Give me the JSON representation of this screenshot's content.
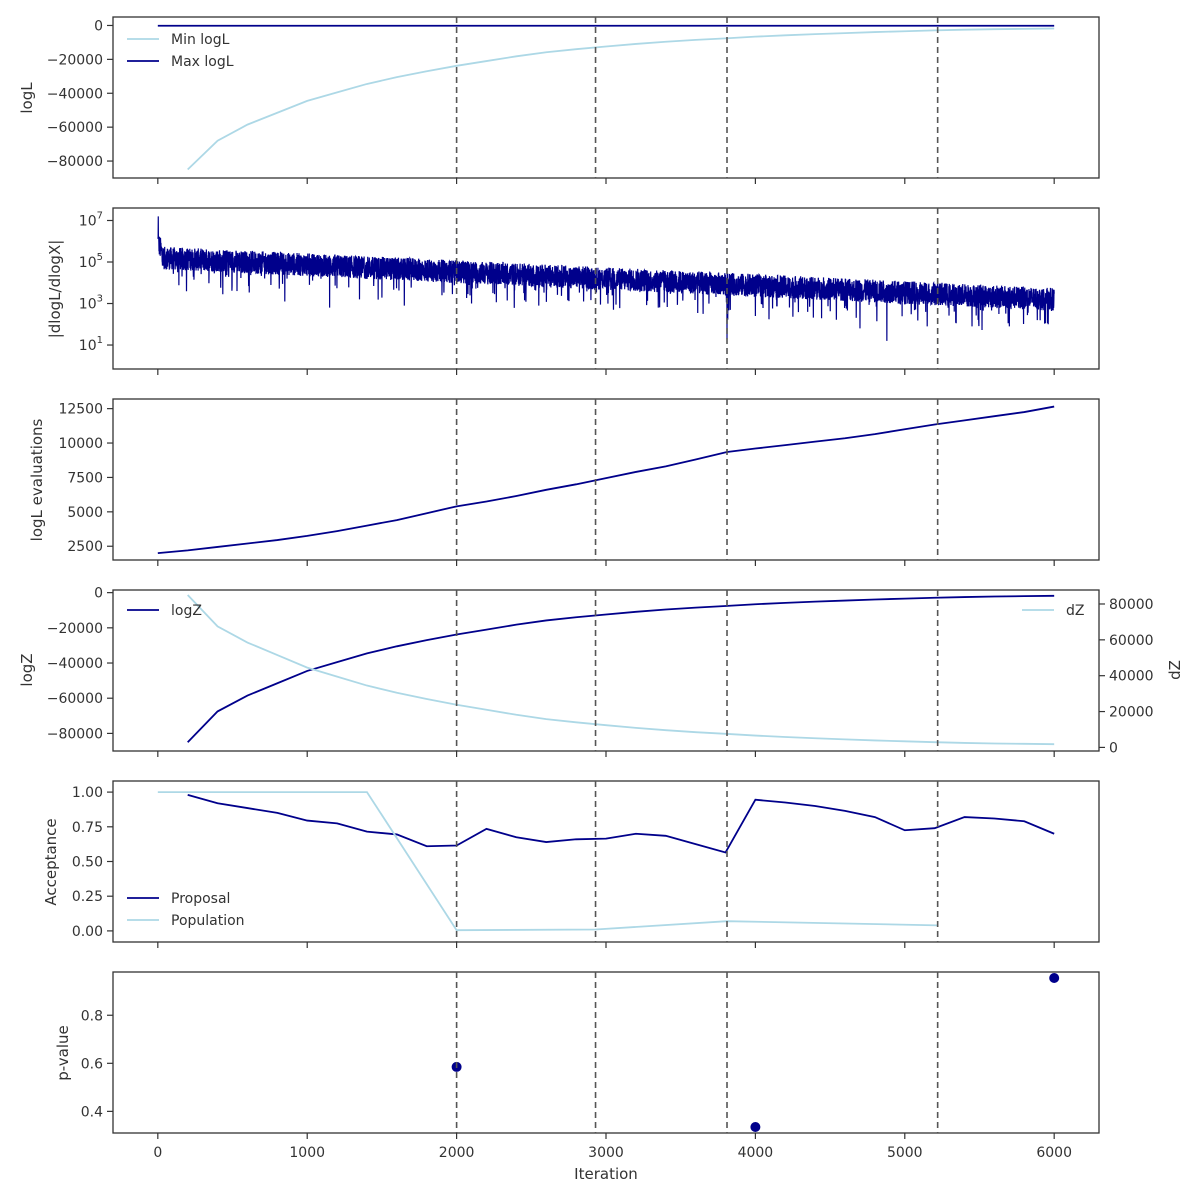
{
  "colors": {
    "dark": "#00008b",
    "light": "#add8e6",
    "vline": "#555555",
    "axis": "#333333"
  },
  "chart_data": [
    {
      "id": "logl",
      "type": "line",
      "ylabel": "logL",
      "xlim": [
        -300,
        6300
      ],
      "ylim": [
        -90000,
        5000
      ],
      "yticks": [
        0,
        -20000,
        -40000,
        -60000,
        -80000
      ],
      "ytick_labels": [
        "0",
        "−20000",
        "−40000",
        "−60000",
        "−80000"
      ],
      "vlines": [
        2000,
        2930,
        3810,
        5220
      ],
      "legend": {
        "position": "top-left",
        "entries": [
          "Min logL",
          "Max logL"
        ]
      },
      "series": [
        {
          "name": "Min logL",
          "color": "light",
          "x": [
            200,
            400,
            600,
            800,
            1000,
            1200,
            1400,
            1600,
            1800,
            2000,
            2200,
            2400,
            2600,
            2800,
            3000,
            3200,
            3400,
            3600,
            3800,
            4000,
            4200,
            4400,
            4600,
            4800,
            5000,
            5200,
            5400,
            5600,
            5800,
            6000
          ],
          "y": [
            -85000,
            -68000,
            -58500,
            -51500,
            -44500,
            -39500,
            -34500,
            -30500,
            -27000,
            -23800,
            -21000,
            -18200,
            -15800,
            -14000,
            -12400,
            -10900,
            -9600,
            -8500,
            -7600,
            -6600,
            -5800,
            -5100,
            -4500,
            -3900,
            -3400,
            -2900,
            -2500,
            -2200,
            -2000,
            -1800
          ]
        },
        {
          "name": "Max logL",
          "color": "dark",
          "x": [
            0,
            6000
          ],
          "y": [
            -150,
            -150
          ]
        }
      ]
    },
    {
      "id": "dlogl",
      "type": "line",
      "ylabel": "|dlogL/dlogX|",
      "xlim": [
        -300,
        6300
      ],
      "yscale": "log",
      "ylim": [
        0.7,
        40000000
      ],
      "yticks": [
        10,
        1000,
        100000,
        10000000
      ],
      "ytick_labels": [
        "10^1",
        "10^3",
        "10^5",
        "10^7"
      ],
      "vlines": [
        2000,
        2930,
        3810,
        5220
      ],
      "series": [
        {
          "color": "dark",
          "x_range": [
            0,
            6000
          ],
          "trend_start_log10": 5.2,
          "trend_end_log10": 3.2,
          "spikes_log10": [
            [
              3,
              7.2
            ],
            [
              530,
              3.6
            ],
            [
              850,
              3.1
            ],
            [
              1150,
              2.8
            ],
            [
              1350,
              3.2
            ],
            [
              1650,
              2.9
            ],
            [
              2100,
              3.0
            ],
            [
              2550,
              2.9
            ],
            [
              2850,
              3.1
            ],
            [
              3050,
              2.7
            ],
            [
              3350,
              2.8
            ],
            [
              3650,
              2.5
            ],
            [
              3810,
              1.3
            ],
            [
              4000,
              2.4
            ],
            [
              4350,
              2.6
            ],
            [
              4700,
              1.8
            ],
            [
              4880,
              1.2
            ],
            [
              5150,
              1.9
            ],
            [
              5450,
              1.9
            ],
            [
              5700,
              1.9
            ],
            [
              5960,
              2.0
            ]
          ]
        }
      ]
    },
    {
      "id": "evals",
      "type": "line",
      "ylabel": "logL evaluations",
      "xlim": [
        -300,
        6300
      ],
      "ylim": [
        1500,
        13200
      ],
      "yticks": [
        2500,
        5000,
        7500,
        10000,
        12500
      ],
      "ytick_labels": [
        "2500",
        "5000",
        "7500",
        "10000",
        "12500"
      ],
      "vlines": [
        2000,
        2930,
        3810,
        5220
      ],
      "series": [
        {
          "color": "dark",
          "x": [
            0,
            200,
            400,
            600,
            800,
            1000,
            1200,
            1400,
            1600,
            1800,
            2000,
            2200,
            2400,
            2600,
            2800,
            3000,
            3200,
            3400,
            3600,
            3810,
            4000,
            4200,
            4400,
            4600,
            4800,
            5000,
            5200,
            5400,
            5600,
            5800,
            6000
          ],
          "y": [
            2000,
            2200,
            2450,
            2700,
            2950,
            3250,
            3600,
            4000,
            4400,
            4900,
            5400,
            5750,
            6150,
            6600,
            7000,
            7450,
            7900,
            8300,
            8800,
            9350,
            9600,
            9850,
            10100,
            10350,
            10650,
            11000,
            11350,
            11650,
            11950,
            12250,
            12650
          ]
        }
      ]
    },
    {
      "id": "logz",
      "type": "line",
      "ylabel": "logZ",
      "ylabel_right": "dZ",
      "xlim": [
        -300,
        6300
      ],
      "ylim": [
        -90000,
        1500
      ],
      "yticks": [
        0,
        -20000,
        -40000,
        -60000,
        -80000
      ],
      "ytick_labels": [
        "0",
        "−20000",
        "−40000",
        "−60000",
        "−80000"
      ],
      "ylim_right": [
        -2000,
        87800
      ],
      "yticks_right": [
        0,
        20000,
        40000,
        60000,
        80000
      ],
      "ytick_labels_right": [
        "0",
        "20000",
        "40000",
        "60000",
        "80000"
      ],
      "vlines": [
        2000,
        2930,
        3810,
        5220
      ],
      "legend": {
        "left": [
          "logZ"
        ],
        "right": [
          "dZ"
        ]
      },
      "series": [
        {
          "name": "logZ",
          "color": "dark",
          "axis": "left",
          "x": [
            200,
            400,
            600,
            800,
            1000,
            1200,
            1400,
            1600,
            1800,
            2000,
            2200,
            2400,
            2600,
            2800,
            3000,
            3200,
            3400,
            3600,
            3800,
            4000,
            4200,
            4400,
            4600,
            4800,
            5000,
            5200,
            5400,
            5600,
            5800,
            6000
          ],
          "y": [
            -85000,
            -67500,
            -58500,
            -51500,
            -44500,
            -39500,
            -34500,
            -30500,
            -27000,
            -23800,
            -21000,
            -18200,
            -15800,
            -14000,
            -12400,
            -10900,
            -9600,
            -8500,
            -7600,
            -6600,
            -5800,
            -5100,
            -4500,
            -3900,
            -3400,
            -2900,
            -2500,
            -2200,
            -2000,
            -1800
          ]
        },
        {
          "name": "dZ",
          "color": "light",
          "axis": "right",
          "x": [
            200,
            400,
            600,
            800,
            1000,
            1200,
            1400,
            1600,
            1800,
            2000,
            2200,
            2400,
            2600,
            2800,
            3000,
            3200,
            3400,
            3600,
            3800,
            4000,
            4200,
            4400,
            4600,
            4800,
            5000,
            5200,
            5400,
            5600,
            5800,
            6000
          ],
          "y": [
            85000,
            67500,
            58500,
            51500,
            44500,
            39500,
            34500,
            30500,
            27000,
            23800,
            21000,
            18200,
            15800,
            14000,
            12400,
            10900,
            9600,
            8500,
            7600,
            6600,
            5800,
            5100,
            4500,
            3900,
            3400,
            2900,
            2500,
            2200,
            2000,
            1800
          ]
        }
      ]
    },
    {
      "id": "acceptance",
      "type": "line",
      "ylabel": "Acceptance",
      "xlim": [
        -300,
        6300
      ],
      "ylim": [
        -0.08,
        1.08
      ],
      "yticks": [
        0,
        0.25,
        0.5,
        0.75,
        1.0
      ],
      "ytick_labels": [
        "0.00",
        "0.25",
        "0.50",
        "0.75",
        "1.00"
      ],
      "vlines": [
        2000,
        2930,
        3810,
        5220
      ],
      "legend": {
        "position": "bottom-left",
        "entries": [
          "Proposal",
          "Population"
        ]
      },
      "series": [
        {
          "name": "Proposal",
          "color": "dark",
          "x": [
            200,
            400,
            600,
            800,
            1000,
            1200,
            1400,
            1600,
            1800,
            2000,
            2200,
            2400,
            2600,
            2800,
            3000,
            3200,
            3400,
            3600,
            3800,
            4000,
            4200,
            4400,
            4600,
            4800,
            5000,
            5200,
            5400,
            5600,
            5800,
            6000
          ],
          "y": [
            0.98,
            0.92,
            0.885,
            0.85,
            0.795,
            0.775,
            0.715,
            0.695,
            0.61,
            0.615,
            0.735,
            0.675,
            0.64,
            0.66,
            0.665,
            0.7,
            0.685,
            0.625,
            0.565,
            0.945,
            0.925,
            0.9,
            0.865,
            0.82,
            0.725,
            0.74,
            0.82,
            0.81,
            0.79,
            0.7
          ]
        },
        {
          "name": "Population",
          "color": "light",
          "x": [
            0,
            1400,
            2000,
            2930,
            3810,
            5220
          ],
          "y": [
            1.0,
            1.0,
            0.005,
            0.01,
            0.07,
            0.04
          ]
        }
      ]
    },
    {
      "id": "pvalue",
      "type": "scatter",
      "ylabel": "p-value",
      "xlabel": "Iteration",
      "xlim": [
        -300,
        6300
      ],
      "ylim": [
        0.31,
        0.98
      ],
      "yticks": [
        0.4,
        0.6,
        0.8
      ],
      "ytick_labels": [
        "0.4",
        "0.6",
        "0.8"
      ],
      "xticks": [
        0,
        1000,
        2000,
        3000,
        4000,
        5000,
        6000
      ],
      "xtick_labels": [
        "0",
        "1000",
        "2000",
        "3000",
        "4000",
        "5000",
        "6000"
      ],
      "vlines": [
        2000,
        2930,
        3810,
        5220
      ],
      "series": [
        {
          "color": "dark",
          "x": [
            2000,
            4000,
            6000
          ],
          "y": [
            0.585,
            0.335,
            0.955
          ]
        }
      ]
    }
  ]
}
